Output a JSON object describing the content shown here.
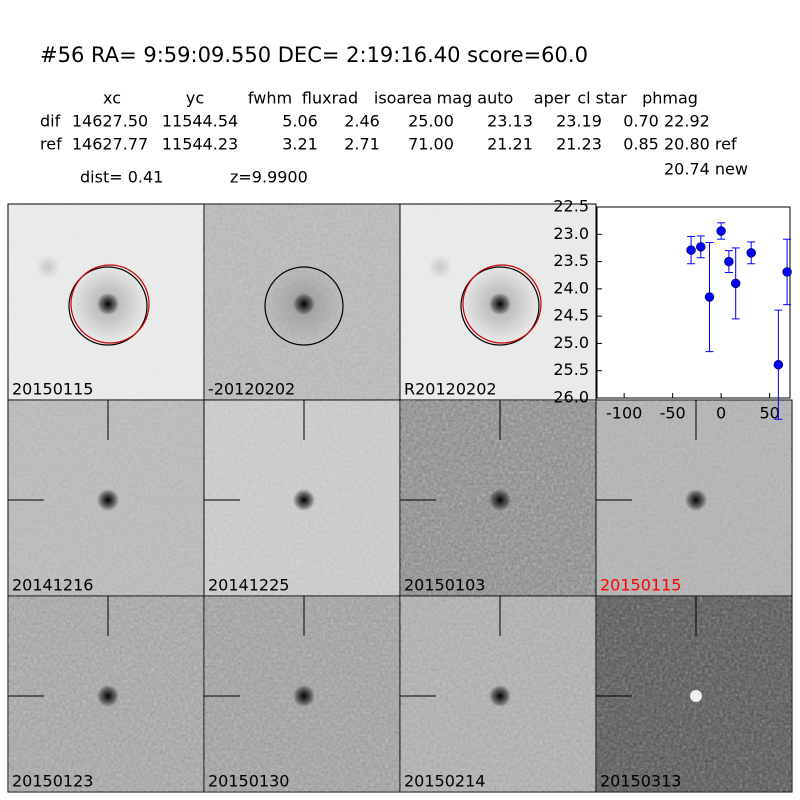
{
  "header": {
    "title": "#56   RA= 9:59:09.550 DEC= 2:19:16.40       score=60.0",
    "table": {
      "columns": [
        "xc",
        "yc",
        "fwhm",
        "fluxrad",
        "isoarea",
        "mag auto",
        "aper",
        "cl star",
        "phmag"
      ],
      "rows": [
        [
          "dif",
          "14627.50",
          "11544.54",
          "5.06",
          "2.46",
          "25.00",
          "23.13",
          "23.19",
          "0.70",
          "22.92"
        ],
        [
          "ref",
          "14627.77",
          "11544.23",
          "3.21",
          "2.71",
          "71.00",
          "21.21",
          "21.23",
          "0.85",
          "20.80 ref"
        ]
      ],
      "extra": "20.74 new"
    },
    "dist": "dist=  0.41",
    "z": "z=9.9900"
  },
  "stamps": [
    {
      "label": "20150115",
      "label_color": "#000000"
    },
    {
      "label": "-20120202",
      "label_color": "#000000"
    },
    {
      "label": "R20120202",
      "label_color": "#000000"
    },
    {
      "label": "20141216",
      "label_color": "#000000"
    },
    {
      "label": "20141225",
      "label_color": "#000000"
    },
    {
      "label": "20150103",
      "label_color": "#000000"
    },
    {
      "label": "20150115",
      "label_color": "#ff0000"
    },
    {
      "label": "20150123",
      "label_color": "#000000"
    },
    {
      "label": "20150130",
      "label_color": "#000000"
    },
    {
      "label": "20150214",
      "label_color": "#000000"
    },
    {
      "label": "20150313",
      "label_color": "#000000"
    }
  ],
  "chart_data": {
    "type": "errorbar",
    "color": "#0000ff",
    "x": [
      -31,
      -21,
      -12,
      0,
      8,
      15,
      31,
      59,
      68
    ],
    "values": [
      23.29,
      23.23,
      24.15,
      22.94,
      23.5,
      23.9,
      23.34,
      25.39,
      23.69
    ],
    "errors": [
      0.25,
      0.2,
      1.0,
      0.15,
      0.2,
      0.65,
      0.2,
      1.0,
      0.6
    ],
    "xlim": [
      -128,
      71
    ],
    "ylim": [
      26.0,
      22.5
    ],
    "inverted_y": true,
    "xticks": [
      -100,
      -50,
      0,
      50
    ],
    "yticks": [
      22.5,
      {
        "value": 23,
        "label": "23.0"
      },
      23.5,
      {
        "value": 24,
        "label": "24.0"
      },
      24.5,
      {
        "value": 25,
        "label": "25.0"
      },
      25.5,
      {
        "value": 26,
        "label": "26.0"
      }
    ]
  }
}
